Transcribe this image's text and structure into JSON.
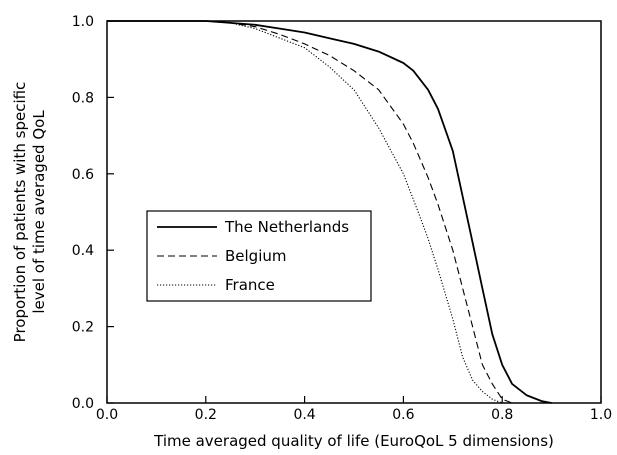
{
  "chart_data": {
    "type": "line",
    "title": "",
    "xlabel": "Time averaged quality of life (EuroQoL 5 dimensions)",
    "ylabel_lines": [
      "Proportion of patients with specific",
      "level of time averaged QoL"
    ],
    "xlim": [
      0.0,
      1.0
    ],
    "ylim": [
      0.0,
      1.0
    ],
    "x_ticks": [
      "0.0",
      "0.2",
      "0.4",
      "0.6",
      "0.8",
      "1.0"
    ],
    "y_ticks": [
      "0.0",
      "0.2",
      "0.4",
      "0.6",
      "0.8",
      "1.0"
    ],
    "grid": false,
    "legend_position": "center-left",
    "series": [
      {
        "name": "The Netherlands",
        "style": "solid",
        "x": [
          0.0,
          0.1,
          0.2,
          0.25,
          0.3,
          0.35,
          0.4,
          0.45,
          0.5,
          0.55,
          0.6,
          0.62,
          0.65,
          0.67,
          0.7,
          0.72,
          0.74,
          0.76,
          0.78,
          0.8,
          0.82,
          0.85,
          0.88,
          0.9
        ],
        "y": [
          1.0,
          1.0,
          1.0,
          0.995,
          0.99,
          0.98,
          0.97,
          0.955,
          0.94,
          0.92,
          0.89,
          0.87,
          0.82,
          0.77,
          0.66,
          0.54,
          0.42,
          0.3,
          0.18,
          0.1,
          0.05,
          0.02,
          0.005,
          0.0
        ]
      },
      {
        "name": "Belgium",
        "style": "dashed",
        "x": [
          0.0,
          0.1,
          0.2,
          0.25,
          0.3,
          0.35,
          0.4,
          0.45,
          0.5,
          0.55,
          0.6,
          0.62,
          0.65,
          0.67,
          0.7,
          0.72,
          0.74,
          0.76,
          0.78,
          0.8,
          0.82
        ],
        "y": [
          1.0,
          1.0,
          1.0,
          0.995,
          0.985,
          0.965,
          0.94,
          0.91,
          0.87,
          0.82,
          0.73,
          0.68,
          0.59,
          0.52,
          0.4,
          0.3,
          0.2,
          0.1,
          0.05,
          0.01,
          0.0
        ]
      },
      {
        "name": "France",
        "style": "dotted",
        "x": [
          0.0,
          0.1,
          0.2,
          0.25,
          0.3,
          0.35,
          0.4,
          0.45,
          0.5,
          0.55,
          0.6,
          0.63,
          0.65,
          0.67,
          0.7,
          0.72,
          0.74,
          0.76,
          0.78,
          0.8
        ],
        "y": [
          1.0,
          1.0,
          1.0,
          0.995,
          0.98,
          0.955,
          0.93,
          0.88,
          0.82,
          0.72,
          0.6,
          0.5,
          0.43,
          0.35,
          0.22,
          0.12,
          0.06,
          0.03,
          0.01,
          0.0
        ]
      }
    ]
  }
}
